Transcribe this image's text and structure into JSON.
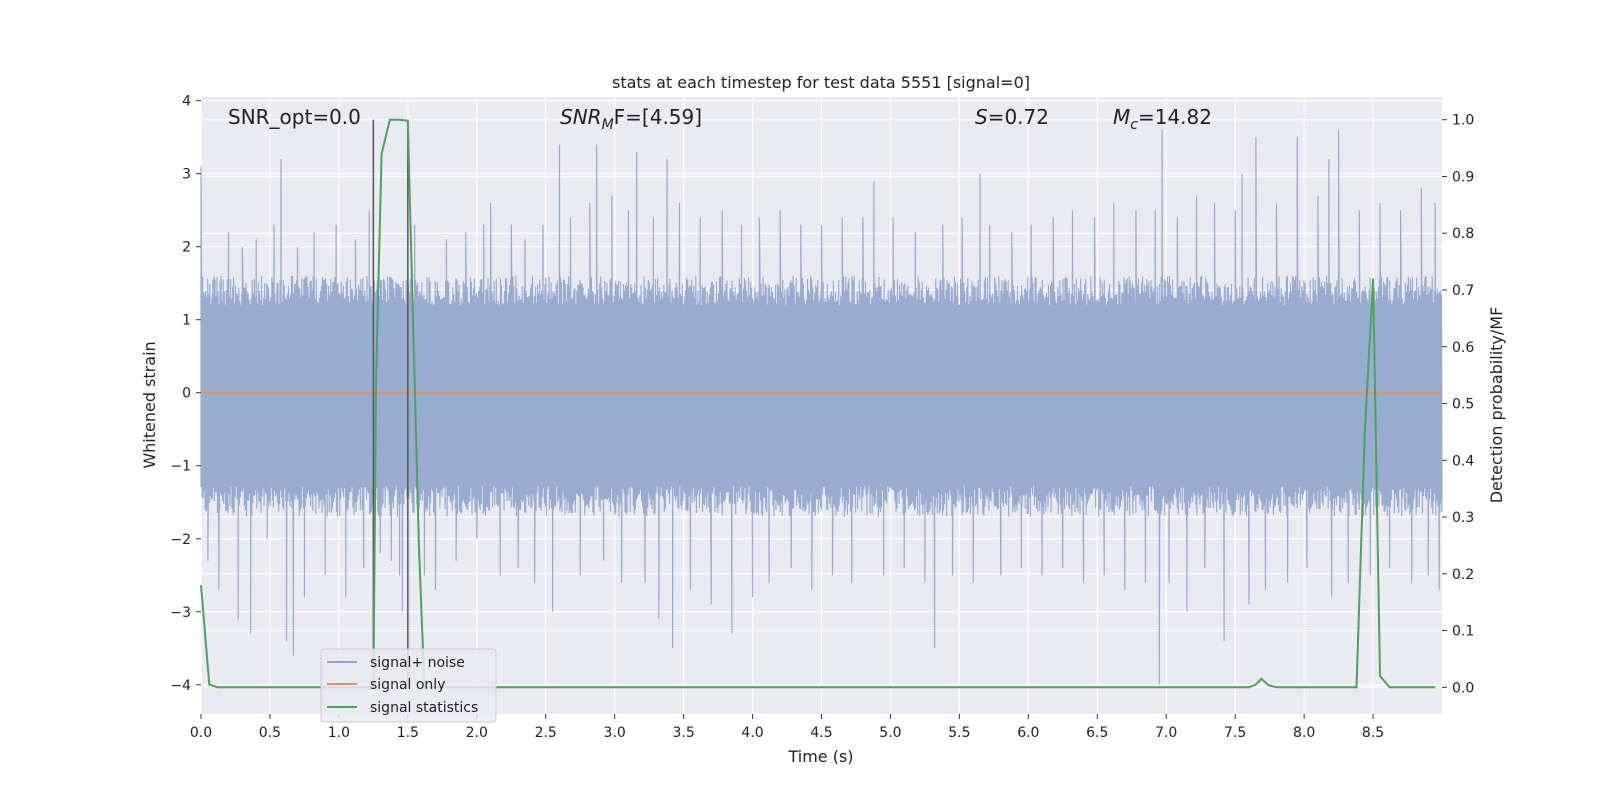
{
  "chart_data": {
    "type": "line",
    "title": "stats at each timestep for test data 5551 [signal=0]",
    "xlabel": "Time (s)",
    "ylabel_left": "Whitened strain",
    "ylabel_right": "Detection probability/MF",
    "xlim": [
      0.0,
      9.0
    ],
    "ylim_left": [
      -4.4,
      4.05
    ],
    "ylim_right": [
      -0.047,
      1.04
    ],
    "grid": true,
    "legend_position": "lower-left",
    "x_ticks": [
      "0.0",
      "0.5",
      "1.0",
      "1.5",
      "2.0",
      "2.5",
      "3.0",
      "3.5",
      "4.0",
      "4.5",
      "5.0",
      "5.5",
      "6.0",
      "6.5",
      "7.0",
      "7.5",
      "8.0",
      "8.5"
    ],
    "y_ticks_left": [
      "4",
      "3",
      "2",
      "1",
      "0",
      "−1",
      "−2",
      "−3",
      "−4"
    ],
    "y_ticks_right": [
      "1.0",
      "0.9",
      "0.8",
      "0.7",
      "0.6",
      "0.5",
      "0.4",
      "0.3",
      "0.2",
      "0.1",
      "0.0"
    ],
    "annotations": {
      "snr_opt": "SNR_opt=0.0",
      "snr_mf_main": "SNR",
      "snr_mf_sub": "M",
      "snr_mf_rest": "F=[4.59]",
      "s_main": "S",
      "s_rest": "=0.72",
      "mc_main": "M",
      "mc_sub": "c",
      "mc_rest": "=14.82"
    },
    "vertical_markers": [
      1.25,
      1.5
    ],
    "series": [
      {
        "name": "signal+ noise",
        "color": "#8fa5cc",
        "description_style": "dense noisy strain trace",
        "typical_range": [
          -1.7,
          1.6
        ],
        "spikes": [
          [
            0.0,
            3.1
          ],
          [
            0.05,
            -2.3
          ],
          [
            0.13,
            -2.7
          ],
          [
            0.2,
            2.2
          ],
          [
            0.27,
            -3.1
          ],
          [
            0.3,
            2.0
          ],
          [
            0.36,
            -3.3
          ],
          [
            0.4,
            2.1
          ],
          [
            0.48,
            -2.0
          ],
          [
            0.53,
            2.3
          ],
          [
            0.58,
            3.2
          ],
          [
            0.62,
            -3.4
          ],
          [
            0.67,
            -3.6
          ],
          [
            0.7,
            2.0
          ],
          [
            0.75,
            -2.8
          ],
          [
            0.82,
            2.2
          ],
          [
            0.9,
            -2.5
          ],
          [
            0.98,
            2.3
          ],
          [
            1.05,
            -2.8
          ],
          [
            1.12,
            2.1
          ],
          [
            1.18,
            -2.4
          ],
          [
            1.22,
            2.5
          ],
          [
            1.3,
            -2.2
          ],
          [
            1.38,
            -2.3
          ],
          [
            1.44,
            -2.5
          ],
          [
            1.46,
            -3.0
          ],
          [
            1.55,
            2.3
          ],
          [
            1.62,
            -2.5
          ],
          [
            1.7,
            -2.7
          ],
          [
            1.78,
            2.1
          ],
          [
            1.85,
            -2.3
          ],
          [
            1.92,
            2.2
          ],
          [
            2.0,
            -2.0
          ],
          [
            2.05,
            2.3
          ],
          [
            2.1,
            2.6
          ],
          [
            2.17,
            -2.5
          ],
          [
            2.25,
            2.3
          ],
          [
            2.3,
            -2.4
          ],
          [
            2.35,
            2.1
          ],
          [
            2.42,
            -2.6
          ],
          [
            2.48,
            2.3
          ],
          [
            2.55,
            -3.0
          ],
          [
            2.6,
            3.4
          ],
          [
            2.68,
            2.4
          ],
          [
            2.75,
            -2.5
          ],
          [
            2.82,
            2.6
          ],
          [
            2.87,
            3.4
          ],
          [
            2.92,
            -2.3
          ],
          [
            2.98,
            2.7
          ],
          [
            3.05,
            -2.6
          ],
          [
            3.1,
            2.5
          ],
          [
            3.16,
            3.3
          ],
          [
            3.22,
            -2.6
          ],
          [
            3.28,
            2.4
          ],
          [
            3.32,
            -3.1
          ],
          [
            3.38,
            3.2
          ],
          [
            3.42,
            -3.5
          ],
          [
            3.47,
            2.6
          ],
          [
            3.55,
            -2.7
          ],
          [
            3.62,
            2.4
          ],
          [
            3.7,
            -2.9
          ],
          [
            3.78,
            2.5
          ],
          [
            3.85,
            -3.3
          ],
          [
            3.92,
            2.3
          ],
          [
            4.0,
            -2.8
          ],
          [
            4.05,
            2.4
          ],
          [
            4.12,
            -2.6
          ],
          [
            4.2,
            2.5
          ],
          [
            4.28,
            -2.4
          ],
          [
            4.35,
            2.3
          ],
          [
            4.43,
            -2.7
          ],
          [
            4.5,
            2.3
          ],
          [
            4.58,
            -2.5
          ],
          [
            4.65,
            2.4
          ],
          [
            4.72,
            -2.6
          ],
          [
            4.8,
            2.4
          ],
          [
            4.88,
            2.9
          ],
          [
            4.95,
            -2.5
          ],
          [
            5.02,
            2.4
          ],
          [
            5.1,
            -2.4
          ],
          [
            5.18,
            2.2
          ],
          [
            5.25,
            -2.6
          ],
          [
            5.32,
            -3.5
          ],
          [
            5.38,
            2.3
          ],
          [
            5.45,
            -2.5
          ],
          [
            5.52,
            2.4
          ],
          [
            5.6,
            -2.6
          ],
          [
            5.65,
            3.0
          ],
          [
            5.72,
            2.3
          ],
          [
            5.8,
            -2.5
          ],
          [
            5.88,
            2.2
          ],
          [
            5.95,
            -2.4
          ],
          [
            6.02,
            2.3
          ],
          [
            6.1,
            -2.5
          ],
          [
            6.18,
            2.4
          ],
          [
            6.25,
            -2.4
          ],
          [
            6.32,
            2.5
          ],
          [
            6.4,
            -2.6
          ],
          [
            6.48,
            2.4
          ],
          [
            6.55,
            -2.5
          ],
          [
            6.62,
            2.6
          ],
          [
            6.7,
            -2.7
          ],
          [
            6.78,
            2.5
          ],
          [
            6.85,
            -2.6
          ],
          [
            6.92,
            2.5
          ],
          [
            6.95,
            -4.0
          ],
          [
            6.97,
            3.6
          ],
          [
            7.02,
            -2.6
          ],
          [
            7.08,
            2.4
          ],
          [
            7.15,
            -3.0
          ],
          [
            7.22,
            2.7
          ],
          [
            7.28,
            -2.4
          ],
          [
            7.35,
            2.6
          ],
          [
            7.42,
            -3.4
          ],
          [
            7.5,
            2.5
          ],
          [
            7.55,
            3.0
          ],
          [
            7.6,
            -2.9
          ],
          [
            7.65,
            3.5
          ],
          [
            7.72,
            -2.7
          ],
          [
            7.8,
            2.6
          ],
          [
            7.88,
            -2.6
          ],
          [
            7.95,
            3.5
          ],
          [
            8.02,
            -2.4
          ],
          [
            8.1,
            2.7
          ],
          [
            8.18,
            3.2
          ],
          [
            8.2,
            -2.8
          ],
          [
            8.25,
            3.6
          ],
          [
            8.32,
            -2.6
          ],
          [
            8.4,
            2.5
          ],
          [
            8.48,
            -2.5
          ],
          [
            8.55,
            2.6
          ],
          [
            8.62,
            -2.4
          ],
          [
            8.7,
            2.5
          ],
          [
            8.78,
            -2.6
          ],
          [
            8.85,
            2.8
          ],
          [
            8.9,
            -2.5
          ],
          [
            8.95,
            2.6
          ],
          [
            8.98,
            -2.7
          ]
        ]
      },
      {
        "name": "signal only",
        "color": "#e0916e",
        "points": [
          [
            0.0,
            0.0
          ],
          [
            9.0,
            0.0
          ]
        ]
      },
      {
        "name": "signal statistics",
        "color": "#4fa05c",
        "axis": "right",
        "points": [
          [
            0.0,
            0.18
          ],
          [
            0.06,
            0.005
          ],
          [
            0.12,
            0.0
          ],
          [
            1.2,
            0.0
          ],
          [
            1.25,
            0.0
          ],
          [
            1.27,
            0.55
          ],
          [
            1.31,
            0.94
          ],
          [
            1.37,
            1.0
          ],
          [
            1.44,
            1.0
          ],
          [
            1.5,
            0.998
          ],
          [
            1.58,
            0.25
          ],
          [
            1.62,
            0.0
          ],
          [
            7.6,
            0.0
          ],
          [
            7.65,
            0.005
          ],
          [
            7.69,
            0.015
          ],
          [
            7.74,
            0.004
          ],
          [
            7.8,
            0.0
          ],
          [
            8.38,
            0.0
          ],
          [
            8.44,
            0.45
          ],
          [
            8.5,
            0.72
          ],
          [
            8.55,
            0.02
          ],
          [
            8.62,
            0.0
          ],
          [
            8.95,
            0.0
          ]
        ]
      }
    ]
  }
}
